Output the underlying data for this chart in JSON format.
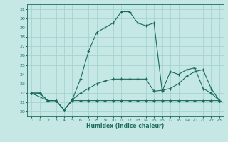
{
  "title": "",
  "xlabel": "Humidex (Indice chaleur)",
  "bg_color": "#c5e8e5",
  "grid_color": "#a0d0cc",
  "line_color": "#1a6b5a",
  "xlim": [
    -0.5,
    23.5
  ],
  "ylim": [
    19.5,
    31.5
  ],
  "xticks": [
    0,
    1,
    2,
    3,
    4,
    5,
    6,
    7,
    8,
    9,
    10,
    11,
    12,
    13,
    14,
    15,
    16,
    17,
    18,
    19,
    20,
    21,
    22,
    23
  ],
  "yticks": [
    20,
    21,
    22,
    23,
    24,
    25,
    26,
    27,
    28,
    29,
    30,
    31
  ],
  "s1_x": [
    0,
    1,
    2,
    3,
    4,
    5,
    6,
    7,
    8,
    9,
    10,
    11,
    12,
    13,
    14,
    15,
    16,
    17,
    18,
    19,
    20,
    21,
    22,
    23
  ],
  "s1_y": [
    22,
    22,
    21.2,
    21.2,
    20.2,
    21.2,
    21.2,
    21.2,
    21.2,
    21.2,
    21.2,
    21.2,
    21.2,
    21.2,
    21.2,
    21.2,
    21.2,
    21.2,
    21.2,
    21.2,
    21.2,
    21.2,
    21.2,
    21.2
  ],
  "s2_x": [
    0,
    1,
    2,
    3,
    4,
    5,
    6,
    7,
    8,
    9,
    10,
    11,
    12,
    13,
    14,
    15,
    16,
    17,
    18,
    19,
    20,
    21,
    22,
    23
  ],
  "s2_y": [
    22,
    22,
    21.2,
    21.2,
    20.2,
    21.3,
    22.0,
    22.5,
    23.0,
    23.3,
    23.5,
    23.5,
    23.5,
    23.5,
    23.5,
    22.2,
    22.3,
    22.5,
    23.0,
    23.8,
    24.3,
    24.5,
    22.5,
    21.2
  ],
  "s3_x": [
    0,
    2,
    3,
    4,
    5,
    6,
    7,
    8,
    9,
    10,
    11,
    12,
    13,
    14,
    15,
    16,
    17,
    18,
    19,
    20,
    21,
    22,
    23
  ],
  "s3_y": [
    22,
    21.2,
    21.2,
    20.2,
    21.3,
    23.5,
    26.5,
    28.5,
    29.0,
    29.5,
    30.7,
    30.7,
    29.5,
    29.2,
    29.5,
    22.2,
    24.3,
    24.0,
    24.5,
    24.7,
    22.5,
    22.0,
    21.2
  ]
}
